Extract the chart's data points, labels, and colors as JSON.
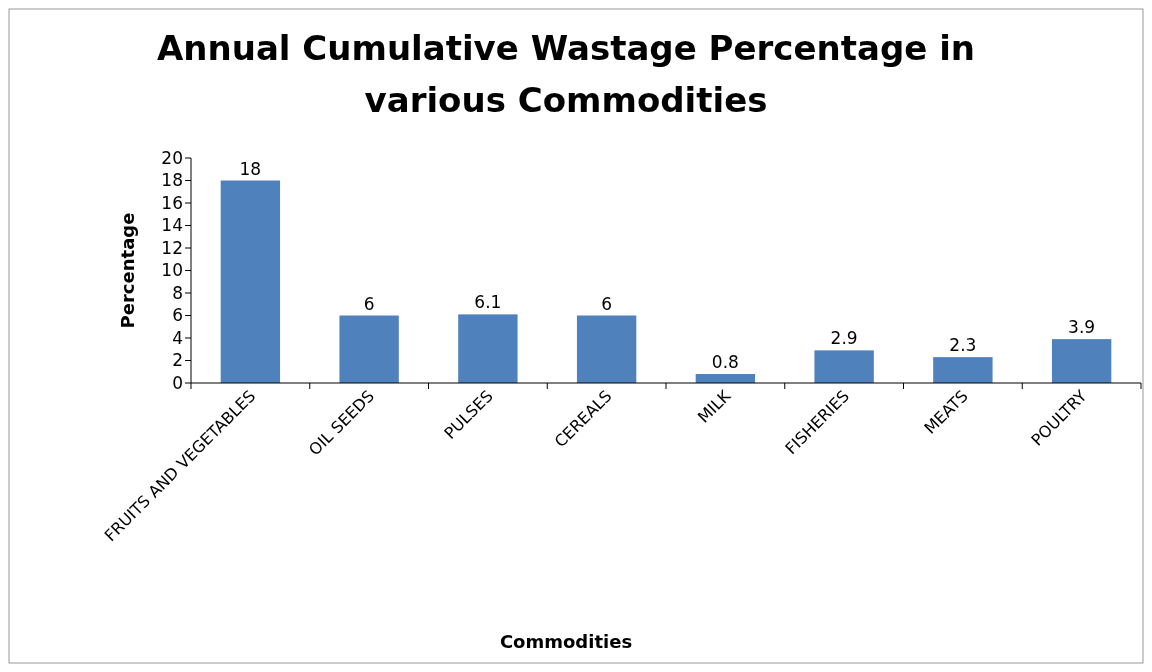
{
  "chart_data": {
    "type": "bar",
    "title": "Annual Cumulative Wastage Percentage in various Commodities",
    "xlabel": "Commodities",
    "ylabel": "Percentage",
    "categories": [
      "FRUITS AND VEGETABLES",
      "OIL SEEDS",
      "PULSES",
      "CEREALS",
      "MILK",
      "FISHERIES",
      "MEATS",
      "POULTRY"
    ],
    "values": [
      18,
      6,
      6.1,
      6,
      0.8,
      2.9,
      2.3,
      3.9
    ],
    "color": "#4f81bd",
    "ylim": [
      0,
      20
    ],
    "yticks": [
      0,
      2,
      4,
      6,
      8,
      10,
      12,
      14,
      16,
      18,
      20
    ],
    "data_labels": true
  }
}
